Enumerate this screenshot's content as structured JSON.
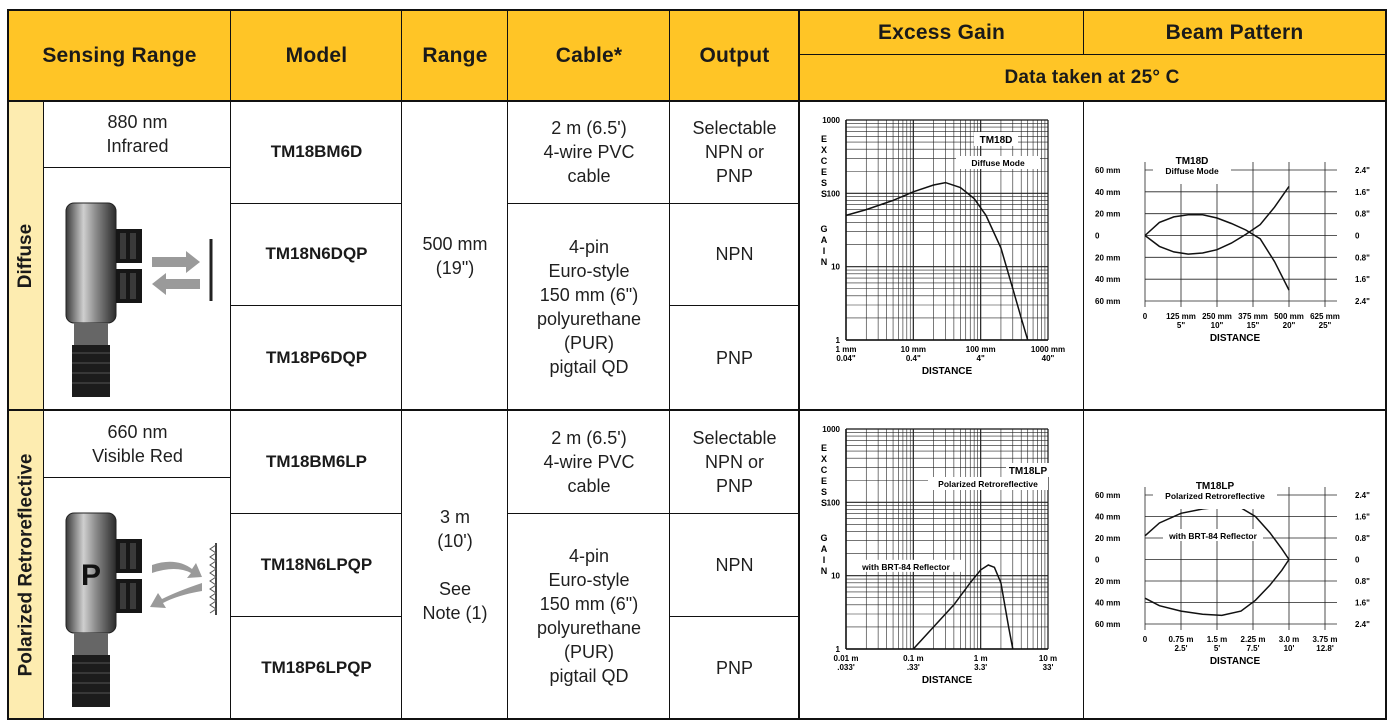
{
  "headers": {
    "sensing_range": "Sensing Range",
    "model": "Model",
    "range": "Range",
    "cable": "Cable*",
    "output": "Output",
    "excess_gain": "Excess Gain",
    "beam_pattern": "Beam Pattern",
    "data_note": "Data taken at 25° C"
  },
  "sections": [
    {
      "mode_label": "Diffuse",
      "wavelength": "880 nm\nInfrared",
      "range": "500 mm\n(19\")",
      "rows": [
        {
          "model": "TM18BM6D",
          "cable": "2 m (6.5')\n4-wire PVC\ncable",
          "output": "Selectable\nNPN or\nPNP"
        },
        {
          "model": "TM18N6DQP",
          "output": "NPN"
        },
        {
          "model": "TM18P6DQP",
          "output": "PNP"
        }
      ],
      "cable_qd": "4-pin\nEuro-style\n150 mm (6\")\npolyurethane\n(PUR)\npigtail QD"
    },
    {
      "mode_label": "Polarized Retroreflective",
      "wavelength": "660 nm\nVisible Red",
      "range": "3 m\n(10')\n\nSee\nNote (1)",
      "rows": [
        {
          "model": "TM18BM6LP",
          "cable": "2 m (6.5')\n4-wire PVC\ncable",
          "output": "Selectable\nNPN or\nPNP"
        },
        {
          "model": "TM18N6LPQP",
          "output": "NPN"
        },
        {
          "model": "TM18P6LPQP",
          "output": "PNP"
        }
      ],
      "cable_qd": "4-pin\nEuro-style\n150 mm (6\")\npolyurethane\n(PUR)\npigtail QD",
      "sensor_letter": "P"
    }
  ],
  "chart_data": [
    {
      "type": "line",
      "title": "TM18D",
      "subtitle": "Diffuse Mode",
      "ylabel": "EXCESS GAIN",
      "xlabel": "DISTANCE",
      "x_scale": "log",
      "y_scale": "log",
      "xlim": [
        1,
        1000
      ],
      "ylim": [
        1,
        1000
      ],
      "x_ticks": [
        {
          "value": 1,
          "label": "1 mm",
          "label2": "0.04\""
        },
        {
          "value": 10,
          "label": "10 mm",
          "label2": "0.4\""
        },
        {
          "value": 100,
          "label": "100 mm",
          "label2": "4\""
        },
        {
          "value": 1000,
          "label": "1000 mm",
          "label2": "40\""
        }
      ],
      "y_ticks": [
        {
          "value": 1,
          "label": "1"
        },
        {
          "value": 10,
          "label": "10"
        },
        {
          "value": 100,
          "label": "100"
        },
        {
          "value": 1000,
          "label": "1000"
        }
      ],
      "series": [
        {
          "x": [
            1,
            2,
            5,
            10,
            20,
            30,
            50,
            80,
            120,
            200,
            300,
            400,
            500
          ],
          "y": [
            50,
            60,
            80,
            105,
            130,
            140,
            120,
            85,
            50,
            18,
            5,
            2,
            1
          ]
        }
      ]
    },
    {
      "type": "line",
      "title": "TM18D",
      "subtitle": "Diffuse Mode",
      "xlabel": "DISTANCE",
      "xlim": [
        0,
        625
      ],
      "ylim": [
        -60,
        60
      ],
      "x_ticks": [
        {
          "value": 0,
          "label": "0",
          "label2": ""
        },
        {
          "value": 125,
          "label": "125 mm",
          "label2": "5\""
        },
        {
          "value": 250,
          "label": "250 mm",
          "label2": "10\""
        },
        {
          "value": 375,
          "label": "375 mm",
          "label2": "15\""
        },
        {
          "value": 500,
          "label": "500 mm",
          "label2": "20\""
        },
        {
          "value": 625,
          "label": "625 mm",
          "label2": "25\""
        }
      ],
      "y_ticks_left": [
        "60 mm",
        "40 mm",
        "20 mm",
        "0",
        "20 mm",
        "40 mm",
        "60 mm"
      ],
      "y_ticks_right": [
        "2.4\"",
        "1.6\"",
        "0.8\"",
        "0",
        "0.8\"",
        "1.6\"",
        "2.4\""
      ],
      "series": [
        {
          "x": [
            0,
            50,
            100,
            150,
            200,
            250,
            300,
            350,
            400,
            450,
            500
          ],
          "y": [
            0,
            12,
            17,
            19,
            19,
            16,
            11,
            5,
            -3,
            -24,
            -50
          ]
        },
        {
          "x": [
            0,
            50,
            100,
            150,
            200,
            250,
            300,
            350,
            400,
            450,
            500
          ],
          "y": [
            0,
            -10,
            -15,
            -17,
            -16,
            -13,
            -7,
            1,
            10,
            26,
            45
          ]
        }
      ]
    },
    {
      "type": "line",
      "title": "TM18LP",
      "subtitle": "Polarized Retroreflective",
      "annotation": "with BRT-84 Reflector",
      "ylabel": "EXCESS GAIN",
      "xlabel": "DISTANCE",
      "x_scale": "log",
      "y_scale": "log",
      "xlim": [
        0.01,
        10
      ],
      "ylim": [
        1,
        1000
      ],
      "x_ticks": [
        {
          "value": 0.01,
          "label": "0.01 m",
          "label2": ".033'"
        },
        {
          "value": 0.1,
          "label": "0.1 m",
          "label2": ".33'"
        },
        {
          "value": 1,
          "label": "1 m",
          "label2": "3.3'"
        },
        {
          "value": 10,
          "label": "10 m",
          "label2": "33'"
        }
      ],
      "y_ticks": [
        {
          "value": 1,
          "label": "1"
        },
        {
          "value": 10,
          "label": "10"
        },
        {
          "value": 100,
          "label": "100"
        },
        {
          "value": 1000,
          "label": "1000"
        }
      ],
      "series": [
        {
          "x": [
            0.1,
            0.2,
            0.4,
            0.7,
            1.0,
            1.3,
            1.6,
            2.0,
            2.6,
            3.0
          ],
          "y": [
            1,
            2,
            4,
            8,
            12,
            14,
            13,
            8,
            2,
            1
          ]
        }
      ]
    },
    {
      "type": "line",
      "title": "TM18LP",
      "subtitle": "Polarized Retroreflective",
      "annotation": "with BRT-84 Reflector",
      "xlabel": "DISTANCE",
      "xlim": [
        0,
        3.75
      ],
      "ylim": [
        -60,
        60
      ],
      "x_ticks": [
        {
          "value": 0,
          "label": "0",
          "label2": ""
        },
        {
          "value": 0.75,
          "label": "0.75 m",
          "label2": "2.5'"
        },
        {
          "value": 1.5,
          "label": "1.5 m",
          "label2": "5'"
        },
        {
          "value": 2.25,
          "label": "2.25 m",
          "label2": "7.5'"
        },
        {
          "value": 3.0,
          "label": "3.0 m",
          "label2": "10'"
        },
        {
          "value": 3.75,
          "label": "3.75 m",
          "label2": "12.8'"
        }
      ],
      "y_ticks_left": [
        "60 mm",
        "40 mm",
        "20 mm",
        "0",
        "20 mm",
        "40 mm",
        "60 mm"
      ],
      "y_ticks_right": [
        "2.4\"",
        "1.6\"",
        "0.8\"",
        "0",
        "0.8\"",
        "1.6\"",
        "2.4\""
      ],
      "series": [
        {
          "x": [
            0,
            0.3,
            0.75,
            1.2,
            1.6,
            2.0,
            2.3,
            2.6,
            2.85,
            3.0
          ],
          "y": [
            22,
            34,
            43,
            47,
            49,
            48,
            40,
            25,
            10,
            0
          ]
        },
        {
          "x": [
            0,
            0.3,
            0.75,
            1.2,
            1.6,
            2.0,
            2.3,
            2.6,
            2.85,
            3.0
          ],
          "y": [
            -36,
            -43,
            -48,
            -51,
            -52,
            -48,
            -38,
            -24,
            -10,
            0
          ]
        }
      ]
    }
  ]
}
